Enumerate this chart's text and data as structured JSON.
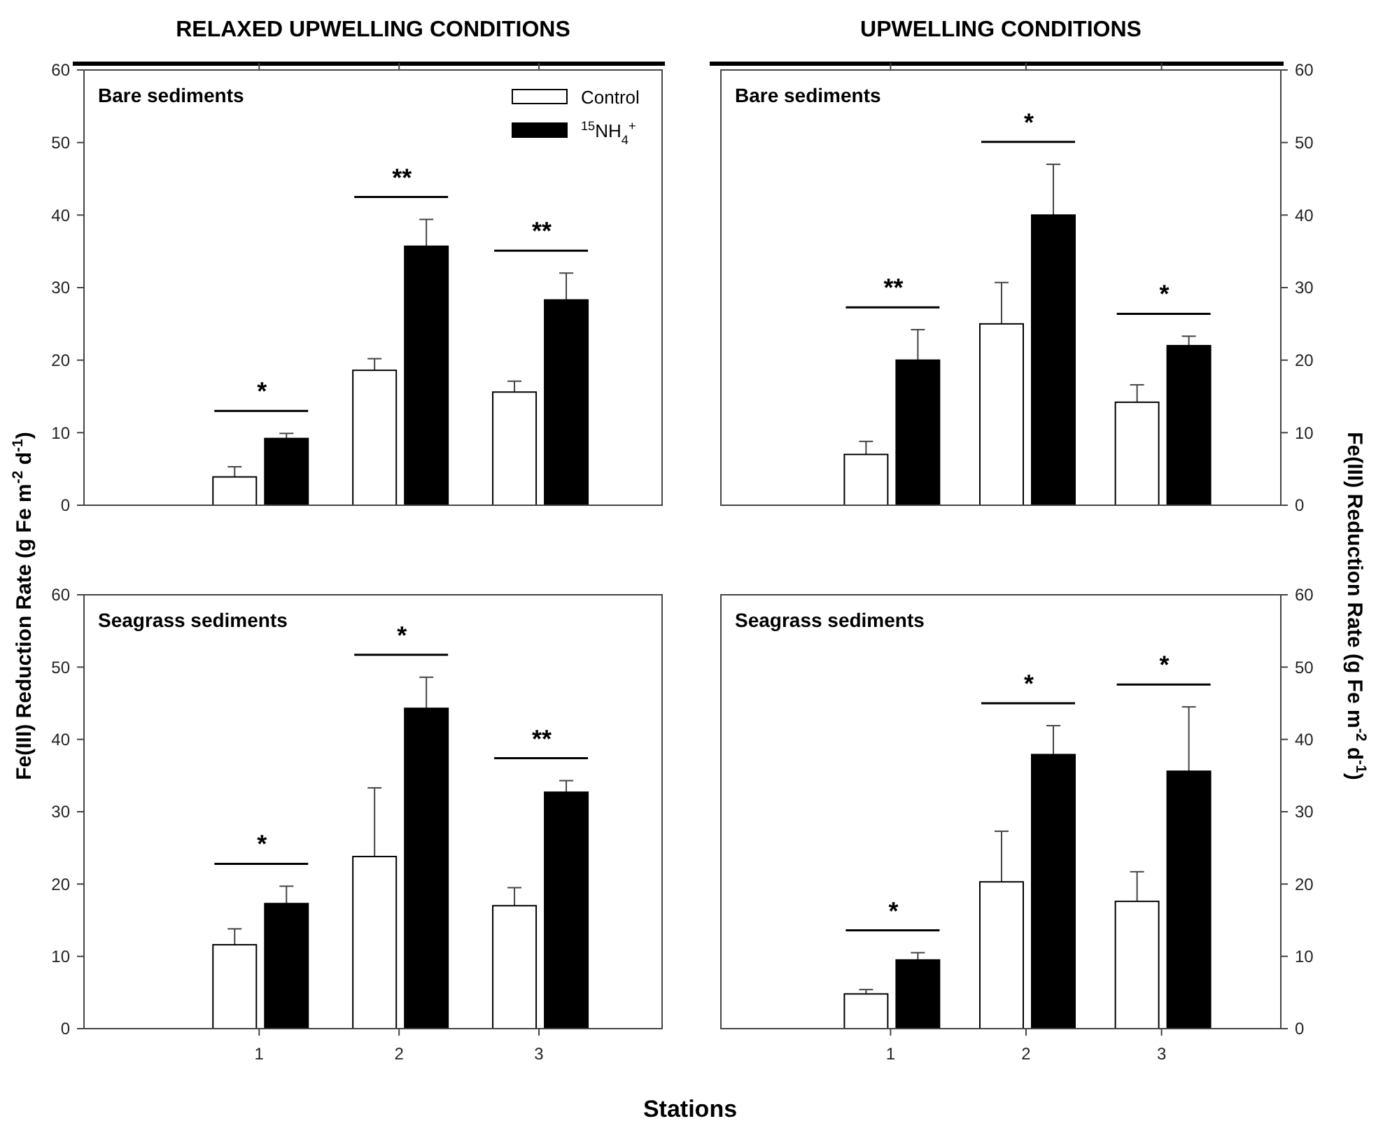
{
  "chart_data": [
    {
      "type": "bar",
      "title": "RELAXED UPWELLING CONDITIONS",
      "subtitle": "Bare sediments",
      "ylabel": "Fe(III) Reduction Rate (g Fe m$^{-2}$ d$^{-1}$)",
      "categories": [
        "1",
        "2",
        "3"
      ],
      "ylim": [
        0,
        60
      ],
      "yticks": [
        0,
        10,
        20,
        30,
        40,
        50,
        60
      ],
      "tick_labels": "y",
      "legend": "top right",
      "series": [
        {
          "name": "Control",
          "color": "#ffffff",
          "values": [
            3.9,
            18.6,
            15.6
          ],
          "errors": [
            1.4,
            1.6,
            1.5
          ]
        },
        {
          "name": "$^{15}$NH$_{4}$$^{+}$",
          "color": "#000000",
          "values": [
            9.2,
            35.7,
            28.3
          ],
          "errors": [
            0.7,
            3.7,
            3.7
          ]
        }
      ],
      "annotations": [
        "*",
        "**",
        "**"
      ]
    },
    {
      "type": "bar",
      "title": "UPWELLING CONDITIONS",
      "subtitle": "Bare sediments",
      "ylabel": "Fe(III) Reduction Rate (g Fe m$^{-2}$ d$^{-1}$)",
      "categories": [
        "1",
        "2",
        "3"
      ],
      "ylim": [
        0,
        60
      ],
      "yticks": [
        0,
        10,
        20,
        30,
        40,
        50,
        60
      ],
      "tick_labels": "y",
      "series": [
        {
          "color": "#ffffff",
          "values": [
            7,
            25,
            14.2
          ],
          "errors": [
            1.8,
            5.7,
            2.4
          ]
        },
        {
          "color": "#000000",
          "values": [
            20,
            40,
            22
          ],
          "errors": [
            4.2,
            7,
            1.3
          ]
        }
      ],
      "annotations": [
        "**",
        "*",
        "*"
      ]
    },
    {
      "type": "bar",
      "subtitle": "Seagrass sediments",
      "xlabel": "Stations",
      "categories": [
        "1",
        "2",
        "3"
      ],
      "ylim": [
        0,
        60
      ],
      "yticks": [
        0,
        10,
        20,
        30,
        40,
        50,
        60
      ],
      "series": [
        {
          "color": "#ffffff",
          "values": [
            11.6,
            23.8,
            17
          ],
          "errors": [
            2.2,
            9.5,
            2.5
          ]
        },
        {
          "color": "#000000",
          "values": [
            17.3,
            44.3,
            32.7
          ],
          "errors": [
            2.4,
            4.3,
            1.6
          ]
        }
      ],
      "annotations": [
        "*",
        "*",
        "**"
      ]
    },
    {
      "type": "bar",
      "subtitle": "Seagrass sediments",
      "categories": [
        "1",
        "2",
        "3"
      ],
      "ylim": [
        0,
        60
      ],
      "yticks": [
        0,
        10,
        20,
        30,
        40,
        50,
        60
      ],
      "series": [
        {
          "color": "#ffffff",
          "values": [
            4.8,
            20.3,
            17.6
          ],
          "errors": [
            0.6,
            7,
            4.1
          ]
        },
        {
          "color": "#000000",
          "values": [
            9.5,
            37.9,
            35.6
          ],
          "errors": [
            1,
            4,
            8.9
          ]
        }
      ],
      "annotations": [
        "*",
        "*",
        "*"
      ]
    }
  ]
}
